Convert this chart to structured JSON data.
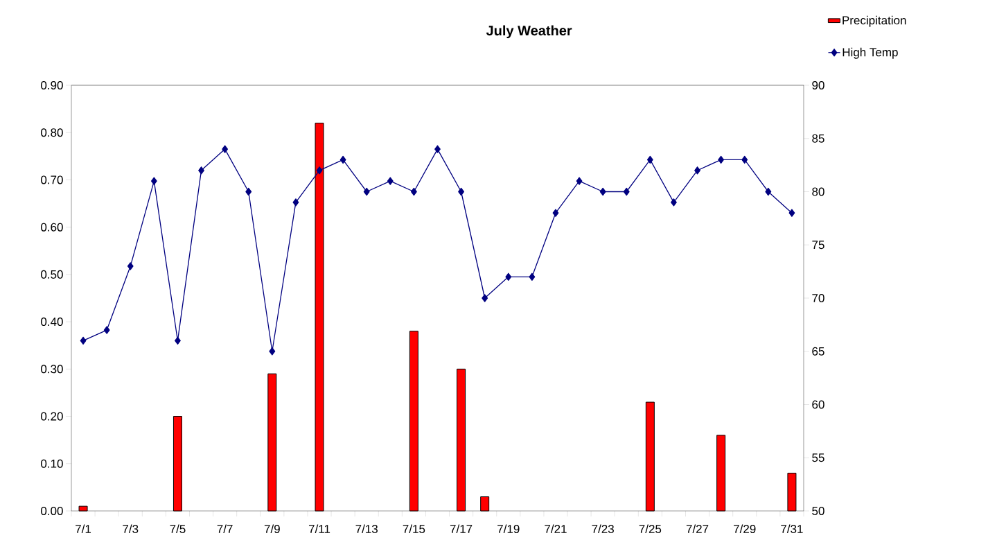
{
  "chart_data": {
    "type": "bar",
    "title": "July Weather",
    "categories": [
      "7/1",
      null,
      "7/3",
      null,
      "7/5",
      null,
      "7/7",
      null,
      "7/9",
      null,
      "7/11",
      null,
      "7/13",
      null,
      "7/15",
      null,
      "7/17",
      null,
      "7/19",
      null,
      "7/21",
      null,
      "7/23",
      null,
      "7/25",
      null,
      "7/27",
      null,
      "7/29",
      null,
      "7/31"
    ],
    "series": [
      {
        "name": "Precipitation",
        "color": "#ff0000",
        "values": [
          0.01,
          null,
          null,
          null,
          0.2,
          null,
          null,
          null,
          0.29,
          null,
          0.82,
          null,
          null,
          null,
          0.38,
          null,
          0.3,
          0.03,
          null,
          null,
          null,
          null,
          null,
          null,
          0.23,
          null,
          null,
          0.16,
          null,
          null,
          0.08
        ]
      },
      {
        "name": "High Temp",
        "type": "line",
        "axis": "y2",
        "color": "#000080",
        "values": [
          66,
          67,
          73,
          81,
          66,
          82,
          84,
          80,
          65,
          79,
          82,
          83,
          80,
          81,
          80,
          84,
          80,
          70,
          72,
          72,
          78,
          81,
          80,
          80,
          83,
          79,
          82,
          83,
          83,
          80,
          78
        ]
      }
    ],
    "ylim": [
      0,
      0.9
    ],
    "yticks": [
      {
        "value": 0,
        "label": "0.00"
      },
      {
        "value": 0.1,
        "label": "0.10"
      },
      {
        "value": 0.2,
        "label": "0.20"
      },
      {
        "value": 0.3,
        "label": "0.30"
      },
      {
        "value": 0.4,
        "label": "0.40"
      },
      {
        "value": 0.5,
        "label": "0.50"
      },
      {
        "value": 0.6,
        "label": "0.60"
      },
      {
        "value": 0.7,
        "label": "0.70"
      },
      {
        "value": 0.8,
        "label": "0.80"
      },
      {
        "value": 0.9,
        "label": "0.90"
      }
    ],
    "y2lim": [
      50,
      90
    ],
    "y2ticks": [
      50,
      55,
      60,
      65,
      70,
      75,
      80,
      85,
      90
    ],
    "marker": "diamond",
    "line_style": "solid",
    "legend": "top right"
  }
}
